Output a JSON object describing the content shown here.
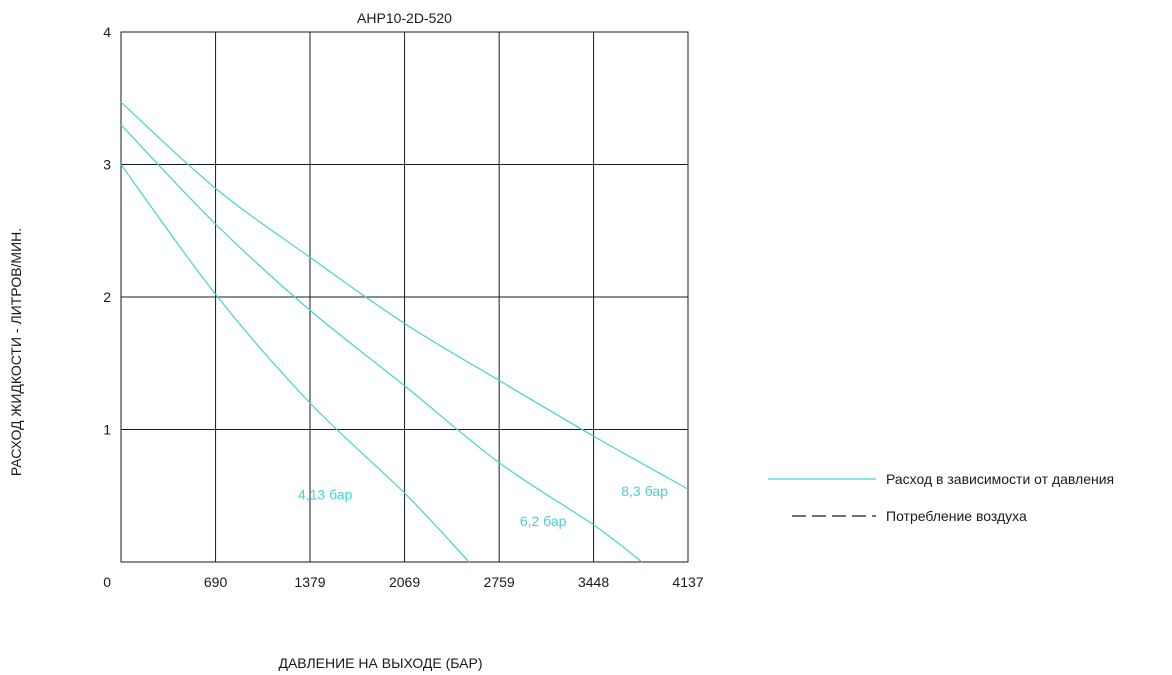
{
  "chart_data": {
    "type": "line",
    "title": "AHP10-2D-520",
    "xlabel": "ДАВЛЕНИЕ НА ВЫХОДЕ (БАР)",
    "ylabel": "РАСХОД ЖИДКОСТИ - ЛИТРОВ/МИН.",
    "x_ticks": [
      "690",
      "1379",
      "2069",
      "2759",
      "3448",
      "4137"
    ],
    "y_ticks": [
      "1",
      "2",
      "3",
      "4"
    ],
    "origin_label": "0",
    "xlim": [
      0,
      4137
    ],
    "ylim": [
      0,
      4
    ],
    "grid": true,
    "legend_position": "right",
    "legend": [
      {
        "label": "Расход в зависимости от давления",
        "style": "solid",
        "color": "#44d3d3"
      },
      {
        "label": "Потребление воздуха",
        "style": "dashed",
        "color": "#1a1a1a"
      }
    ],
    "series": [
      {
        "name": "4,13 бар",
        "color": "#44d3d3",
        "points": [
          [
            0,
            3.0
          ],
          [
            690,
            2.02
          ],
          [
            1379,
            1.2
          ],
          [
            2069,
            0.52
          ],
          [
            2540,
            0.0
          ]
        ]
      },
      {
        "name": "6,2 бар",
        "color": "#44d3d3",
        "points": [
          [
            0,
            3.3
          ],
          [
            690,
            2.55
          ],
          [
            1379,
            1.9
          ],
          [
            2069,
            1.33
          ],
          [
            2759,
            0.75
          ],
          [
            3448,
            0.28
          ],
          [
            3800,
            0.0
          ]
        ]
      },
      {
        "name": "8,3 бар",
        "color": "#44d3d3",
        "points": [
          [
            0,
            3.47
          ],
          [
            690,
            2.82
          ],
          [
            1379,
            2.3
          ],
          [
            2069,
            1.8
          ],
          [
            2759,
            1.37
          ],
          [
            3448,
            0.95
          ],
          [
            4137,
            0.55
          ]
        ]
      }
    ]
  }
}
